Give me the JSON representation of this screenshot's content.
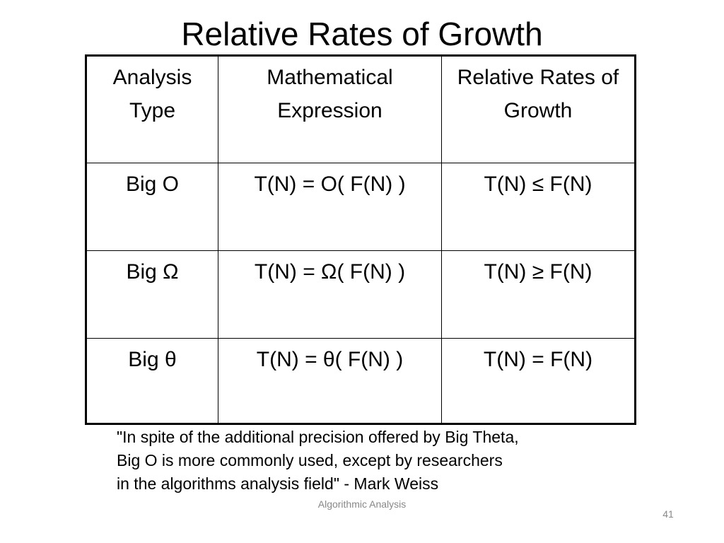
{
  "header": {
    "title": "Relative Rates of Growth"
  },
  "table": {
    "columns": [
      "Analysis Type",
      "Mathematical Expression",
      "Relative Rates of Growth"
    ],
    "rows": [
      [
        "Big O",
        "T(N) = O( F(N) )",
        "T(N) ≤ F(N)"
      ],
      [
        "Big Ω",
        "T(N) = Ω( F(N) )",
        "T(N) ≥ F(N)"
      ],
      [
        "Big θ",
        "T(N) = θ( F(N) )",
        "T(N) = F(N)"
      ]
    ]
  },
  "quote": {
    "lines": [
      "\"In spite of the additional precision offered by Big Theta,",
      "Big O is more commonly used, except by researchers",
      "in the algorithms analysis field\" - Mark Weiss"
    ]
  },
  "footer": {
    "text": "Algorithmic Analysis",
    "page_number": 41
  }
}
